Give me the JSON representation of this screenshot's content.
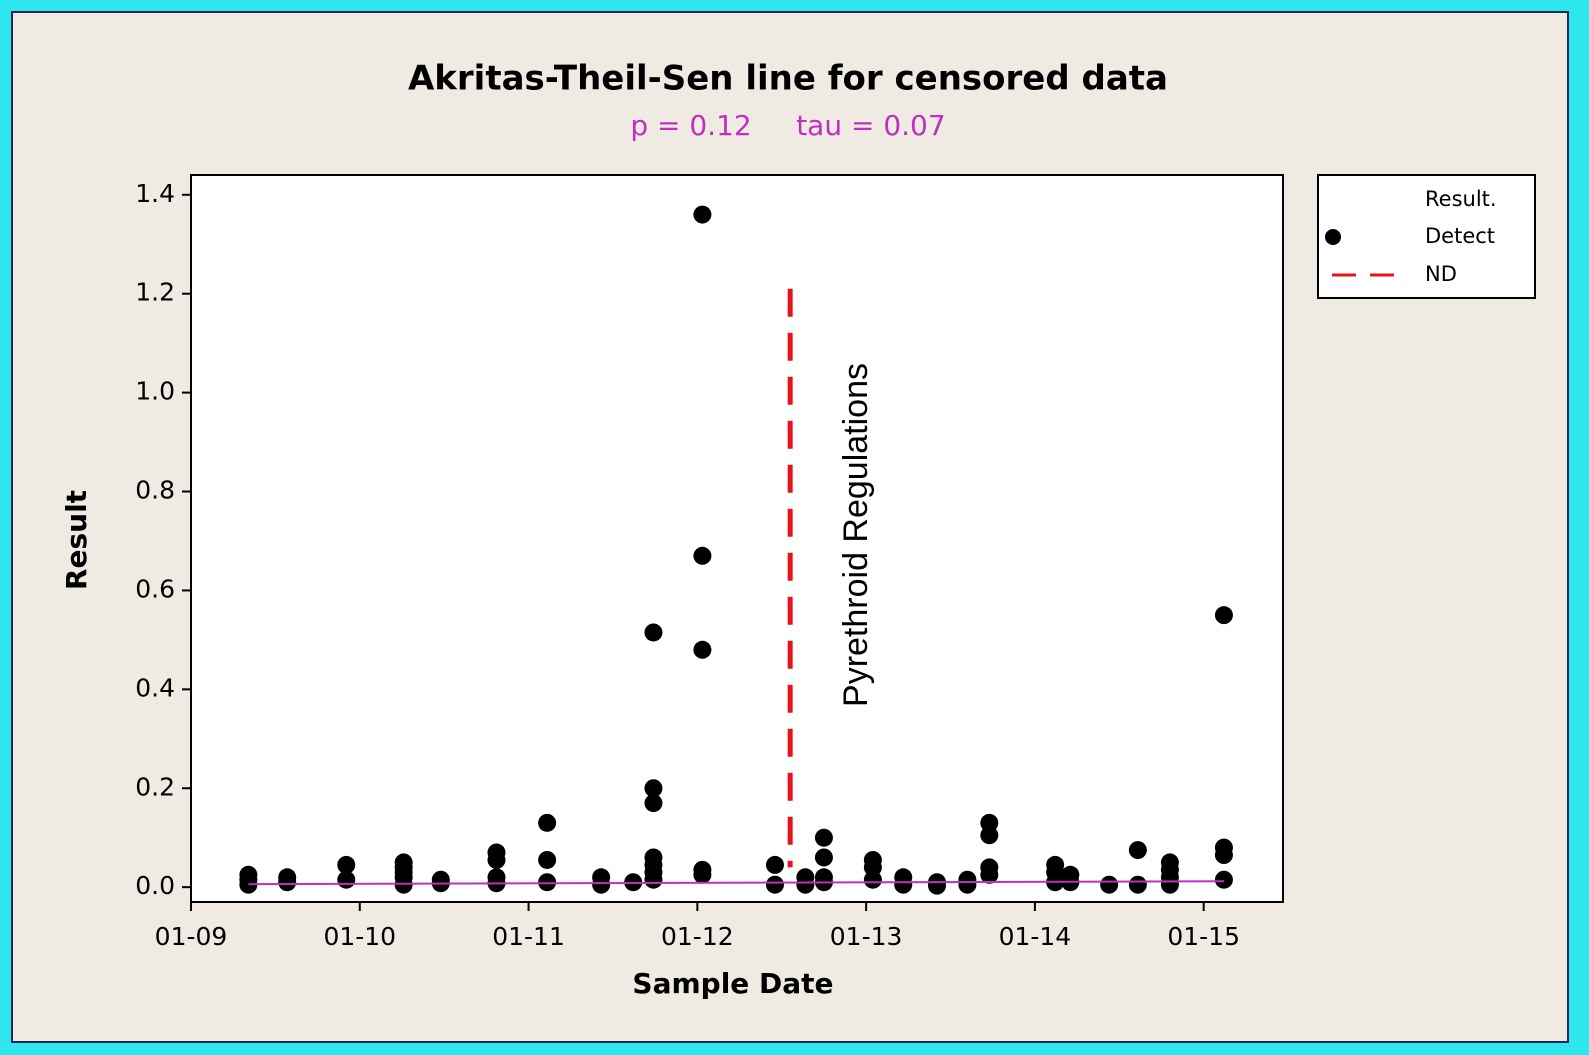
{
  "chart_data": {
    "type": "scatter",
    "title": "Akritas-Theil-Sen line for censored data",
    "subtitle": "p = 0.12     tau = 0.07",
    "x_label": "Sample Date",
    "y_label": "Result",
    "xlim": [
      2009,
      2015.47
    ],
    "ylim": [
      -0.03,
      1.44
    ],
    "xticks": [
      {
        "value": 2009,
        "label": "01-09"
      },
      {
        "value": 2010,
        "label": "01-10"
      },
      {
        "value": 2011,
        "label": "01-11"
      },
      {
        "value": 2012,
        "label": "01-12"
      },
      {
        "value": 2013,
        "label": "01-13"
      },
      {
        "value": 2014,
        "label": "01-14"
      },
      {
        "value": 2015,
        "label": "01-15"
      }
    ],
    "yticks": [
      {
        "value": 0,
        "label": "0.0"
      },
      0.2,
      0.4,
      0.6,
      0.8,
      {
        "value": 1,
        "label": "1.0"
      },
      1.2,
      1.4
    ],
    "legend_title": "Result.",
    "series": [
      {
        "name": "Detect",
        "color": "#000000",
        "x": [
          2009.34,
          2009.34,
          2009.34,
          2009.57,
          2009.57,
          2009.92,
          2009.92,
          2010.26,
          2010.26,
          2010.26,
          2010.26,
          2010.26,
          2010.48,
          2010.48,
          2010.81,
          2010.81,
          2010.81,
          2010.81,
          2011.11,
          2011.11,
          2011.11,
          2011.43,
          2011.43,
          2011.62,
          2011.74,
          2011.74,
          2011.74,
          2011.74,
          2011.74,
          2011.74,
          2011.74,
          2012.03,
          2012.03,
          2012.03,
          2012.03,
          2012.03,
          2012.46,
          2012.46,
          2012.64,
          2012.64,
          2012.75,
          2012.75,
          2012.75,
          2012.75,
          2013.04,
          2013.04,
          2013.04,
          2013.22,
          2013.22,
          2013.42,
          2013.42,
          2013.6,
          2013.6,
          2013.73,
          2013.73,
          2013.73,
          2013.73,
          2014.12,
          2014.12,
          2014.12,
          2014.21,
          2014.21,
          2014.44,
          2014.61,
          2014.61,
          2014.8,
          2014.8,
          2014.8,
          2014.8,
          2015.12,
          2015.12,
          2015.12,
          2015.12
        ],
        "values": [
          0.025,
          0.015,
          0.005,
          0.02,
          0.01,
          0.045,
          0.015,
          0.05,
          0.04,
          0.03,
          0.02,
          0.005,
          0.015,
          0.008,
          0.07,
          0.055,
          0.02,
          0.008,
          0.13,
          0.055,
          0.01,
          0.02,
          0.005,
          0.01,
          0.515,
          0.2,
          0.17,
          0.06,
          0.045,
          0.03,
          0.015,
          1.36,
          0.67,
          0.48,
          0.035,
          0.025,
          0.045,
          0.005,
          0.02,
          0.005,
          0.1,
          0.06,
          0.02,
          0.01,
          0.055,
          0.04,
          0.015,
          0.02,
          0.005,
          0.01,
          0.003,
          0.015,
          0.005,
          0.13,
          0.105,
          0.04,
          0.025,
          0.045,
          0.03,
          0.01,
          0.025,
          0.01,
          0.005,
          0.075,
          0.005,
          0.05,
          0.035,
          0.02,
          0.005,
          0.55,
          0.08,
          0.065,
          0.015
        ]
      }
    ],
    "trend": {
      "color": "#c030c0",
      "x": [
        2009.34,
        2015.12
      ],
      "values": [
        0.006,
        0.012
      ]
    },
    "reference_line": {
      "name": "ND",
      "color": "#e8141b",
      "x": 2012.55,
      "y": [
        0.04,
        1.21
      ]
    },
    "annotation": "Pyrethroid Regulations"
  }
}
